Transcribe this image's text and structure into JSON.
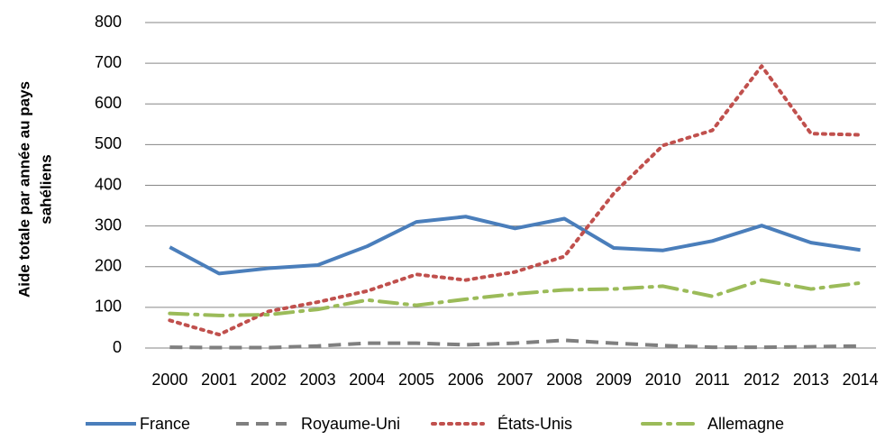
{
  "chart_data": {
    "type": "line",
    "ylabel": [
      "Aide totale par année au pays",
      "sahéliens"
    ],
    "categories": [
      "2000",
      "2001",
      "2002",
      "2003",
      "2004",
      "2005",
      "2006",
      "2007",
      "2008",
      "2009",
      "2010",
      "2011",
      "2012",
      "2013",
      "2014"
    ],
    "series": [
      {
        "name": "France",
        "color": "#4a7ebb",
        "dash": "solid",
        "values": [
          248,
          183,
          196,
          204,
          250,
          310,
          323,
          294,
          318,
          246,
          240,
          263,
          301,
          259,
          241
        ]
      },
      {
        "name": "Royaume-Uni",
        "color": "#7f7f7f",
        "dash": "dashed",
        "values": [
          2,
          1,
          1,
          5,
          12,
          12,
          8,
          12,
          19,
          12,
          6,
          2,
          2,
          3,
          5
        ]
      },
      {
        "name": "États-Unis",
        "color": "#c0504d",
        "dash": "dotted",
        "values": [
          68,
          33,
          90,
          113,
          140,
          181,
          167,
          187,
          225,
          380,
          498,
          535,
          693,
          527,
          524
        ]
      },
      {
        "name": "Allemagne",
        "color": "#9bbb59",
        "dash": "dashdot",
        "values": [
          85,
          80,
          82,
          95,
          118,
          105,
          120,
          133,
          143,
          145,
          152,
          127,
          167,
          145,
          160
        ]
      }
    ],
    "ylim": [
      0,
      800
    ],
    "yticks": [
      0,
      100,
      200,
      300,
      400,
      500,
      600,
      700,
      800
    ],
    "grid": true,
    "legend": "bottom"
  }
}
